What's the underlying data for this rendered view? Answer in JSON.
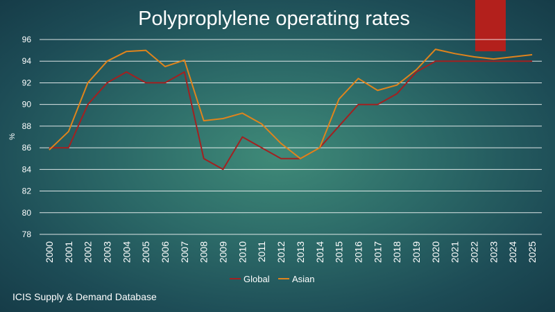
{
  "chart_data": {
    "type": "line",
    "title": "Polyproplylene operating rates",
    "ylabel": "%",
    "xlabel": "",
    "ylim": [
      78,
      96
    ],
    "yticks": [
      78,
      80,
      82,
      84,
      86,
      88,
      90,
      92,
      94,
      96
    ],
    "grid": true,
    "legend_position": "bottom",
    "categories": [
      "2000",
      "2001",
      "2002",
      "2003",
      "2004",
      "2005",
      "2006",
      "2007",
      "2008",
      "2009",
      "2010",
      "2011",
      "2012",
      "2013",
      "2014",
      "2015",
      "2016",
      "2017",
      "2018",
      "2019",
      "2020",
      "2021",
      "2022",
      "2023",
      "2024",
      "2025"
    ],
    "series": [
      {
        "name": "Global",
        "color": "#a32020",
        "values": [
          86,
          86,
          90,
          92,
          93,
          92,
          92,
          93,
          85,
          84,
          87,
          86,
          85,
          85,
          86,
          88,
          90,
          90,
          91,
          93,
          94,
          94,
          94,
          94,
          94,
          94
        ]
      },
      {
        "name": "Asian",
        "color": "#e0841c",
        "values": [
          85.8,
          87.5,
          92,
          94,
          94.9,
          95,
          93.5,
          94.1,
          88.5,
          88.7,
          89.2,
          88.2,
          86.4,
          85,
          86,
          90.5,
          92.4,
          91.3,
          91.8,
          93.2,
          95.1,
          94.7,
          94.4,
          94.2,
          94.4,
          94.6
        ]
      }
    ]
  },
  "source": "ICIS Supply & Demand Database",
  "highlight_color": "#b3201c"
}
